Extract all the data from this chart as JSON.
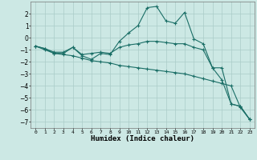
{
  "xlabel": "Humidex (Indice chaleur)",
  "background_color": "#cce8e4",
  "grid_color": "#aaccc8",
  "line_color": "#1a6e66",
  "x_values": [
    0,
    1,
    2,
    3,
    4,
    5,
    6,
    7,
    8,
    9,
    10,
    11,
    12,
    13,
    14,
    15,
    16,
    17,
    18,
    19,
    20,
    21,
    22,
    23
  ],
  "series": [
    [
      -0.7,
      -0.9,
      -1.3,
      -1.3,
      -0.8,
      -1.5,
      -1.8,
      -1.3,
      -1.4,
      -0.3,
      0.4,
      1.0,
      2.5,
      2.6,
      1.4,
      1.2,
      2.1,
      -0.1,
      -0.5,
      -2.5,
      -3.5,
      -5.5,
      -5.7,
      -6.8
    ],
    [
      -0.7,
      -1.0,
      -1.3,
      -1.4,
      -1.5,
      -1.7,
      -1.9,
      -2.0,
      -2.1,
      -2.3,
      -2.4,
      -2.5,
      -2.6,
      -2.7,
      -2.8,
      -2.9,
      -3.0,
      -3.2,
      -3.4,
      -3.6,
      -3.8,
      -4.0,
      -5.8,
      -6.8
    ],
    [
      -0.7,
      -0.9,
      -1.2,
      -1.2,
      -0.8,
      -1.4,
      -1.3,
      -1.2,
      -1.3,
      -0.8,
      -0.6,
      -0.5,
      -0.3,
      -0.3,
      -0.4,
      -0.5,
      -0.5,
      -0.8,
      -1.0,
      -2.5,
      -2.5,
      -5.5,
      -5.7,
      -6.8
    ]
  ],
  "ylim": [
    -7.5,
    3.0
  ],
  "xlim": [
    -0.5,
    23.5
  ],
  "yticks": [
    -7,
    -6,
    -5,
    -4,
    -3,
    -2,
    -1,
    0,
    1,
    2
  ],
  "xtick_labels": [
    "0",
    "1",
    "2",
    "3",
    "4",
    "5",
    "6",
    "7",
    "8",
    "9",
    "10",
    "11",
    "12",
    "13",
    "14",
    "15",
    "16",
    "17",
    "18",
    "19",
    "20",
    "21",
    "22",
    "23"
  ],
  "figsize": [
    3.2,
    2.0
  ],
  "dpi": 100
}
